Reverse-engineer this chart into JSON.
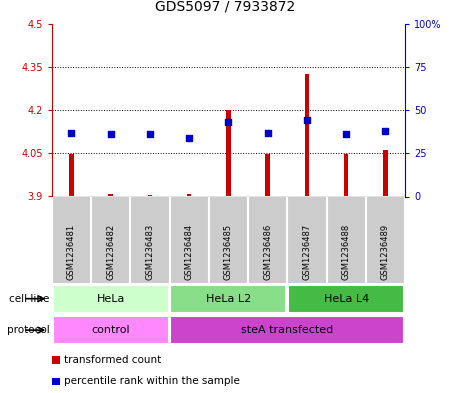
{
  "title": "GDS5097 / 7933872",
  "samples": [
    "GSM1236481",
    "GSM1236482",
    "GSM1236483",
    "GSM1236484",
    "GSM1236485",
    "GSM1236486",
    "GSM1236487",
    "GSM1236488",
    "GSM1236489"
  ],
  "transformed_counts": [
    4.047,
    3.91,
    3.905,
    3.91,
    4.2,
    4.047,
    4.325,
    4.047,
    4.06
  ],
  "percentile_ranks": [
    37,
    36,
    36,
    34,
    43,
    37,
    44,
    36,
    38
  ],
  "ylim_left": [
    3.9,
    4.5
  ],
  "ylim_right": [
    0,
    100
  ],
  "yticks_left": [
    3.9,
    4.05,
    4.2,
    4.35,
    4.5
  ],
  "yticks_right": [
    0,
    25,
    50,
    75,
    100
  ],
  "ytick_labels_left": [
    "3.9",
    "4.05",
    "4.2",
    "4.35",
    "4.5"
  ],
  "ytick_labels_right": [
    "0",
    "25",
    "50",
    "75",
    "100%"
  ],
  "bar_color": "#cc0000",
  "dot_color": "#0000cc",
  "bar_base": 3.9,
  "dotted_gridlines": [
    4.05,
    4.2,
    4.35
  ],
  "cell_line_groups": [
    {
      "label": "HeLa",
      "start": 0,
      "end": 3,
      "color": "#ccffcc"
    },
    {
      "label": "HeLa L2",
      "start": 3,
      "end": 6,
      "color": "#88dd88"
    },
    {
      "label": "HeLa L4",
      "start": 6,
      "end": 9,
      "color": "#44bb44"
    }
  ],
  "protocol_groups": [
    {
      "label": "control",
      "start": 0,
      "end": 3,
      "color": "#ff88ff"
    },
    {
      "label": "steA transfected",
      "start": 3,
      "end": 9,
      "color": "#cc44cc"
    }
  ],
  "legend_items": [
    {
      "color": "#cc0000",
      "label": "transformed count"
    },
    {
      "color": "#0000cc",
      "label": "percentile rank within the sample"
    }
  ],
  "sample_bg_color": "#cccccc",
  "sample_divider_color": "#ffffff",
  "plot_bg_color": "#ffffff",
  "left_tick_color": "#cc0000",
  "right_tick_color": "#0000cc",
  "title_fontsize": 10,
  "tick_fontsize": 7,
  "sample_fontsize": 6,
  "label_fontsize": 7.5,
  "group_fontsize": 8
}
